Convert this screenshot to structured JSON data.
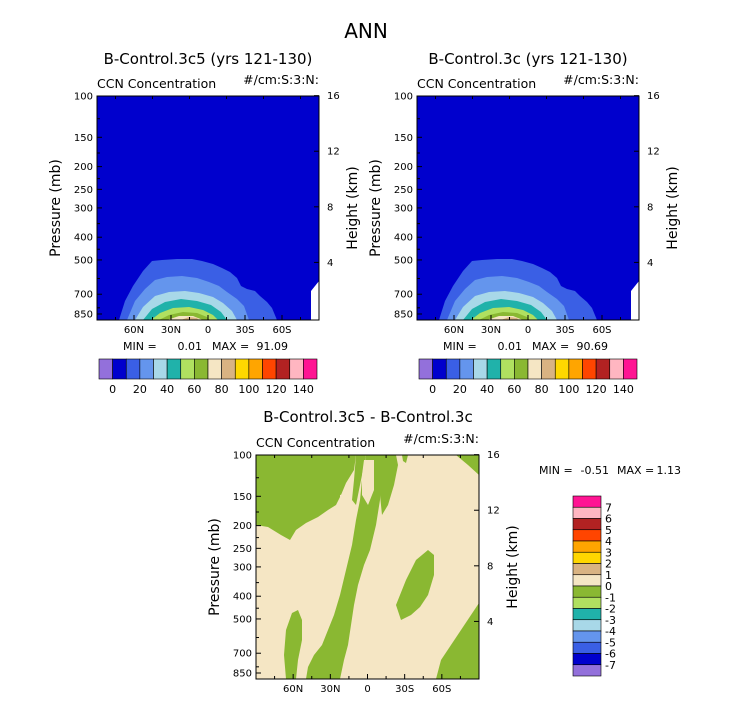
{
  "chart_data": {
    "title": "ANN",
    "panels": [
      {
        "id": "p1",
        "type": "contour",
        "title": "B-Control.3c5 (yrs 121-130)",
        "field": "CCN Concentration",
        "units": "#/cm:S:3:N:",
        "ylabel": "Pressure (mb)",
        "ylabel_right": "Height (km)",
        "pressure_ticks": [
          "100",
          "150",
          "200",
          "250",
          "300",
          "400",
          "500",
          "700",
          "850"
        ],
        "height_ticks": [
          "16",
          "12",
          "8",
          "4"
        ],
        "lat_ticks": [
          "60N",
          "30N",
          "0",
          "30S",
          "60S"
        ],
        "min_label": "MIN =",
        "min_value": "0.01",
        "max_label": "MAX =",
        "max_value": "91.09",
        "colorbar": {
          "labels": [
            "0",
            "20",
            "40",
            "60",
            "80",
            "100",
            "120",
            "140"
          ],
          "colors": [
            "#9370db",
            "#0000cd",
            "#3a5fe5",
            "#6495ed",
            "#a8d8e8",
            "#20b2aa",
            "#b0e060",
            "#8ab832",
            "#f5e6c4",
            "#d9b382",
            "#ffd700",
            "#ffa500",
            "#ff4500",
            "#b22222",
            "#ffb6c1",
            "#ff1493"
          ]
        }
      },
      {
        "id": "p2",
        "type": "contour",
        "title": "B-Control.3c (yrs 121-130)",
        "field": "CCN Concentration",
        "units": "#/cm:S:3:N:",
        "ylabel": "Pressure (mb)",
        "ylabel_right": "Height (km)",
        "pressure_ticks": [
          "100",
          "150",
          "200",
          "250",
          "300",
          "400",
          "500",
          "700",
          "850"
        ],
        "height_ticks": [
          "16",
          "12",
          "8",
          "4"
        ],
        "lat_ticks": [
          "60N",
          "30N",
          "0",
          "30S",
          "60S"
        ],
        "min_label": "MIN =",
        "min_value": "0.01",
        "max_label": "MAX =",
        "max_value": "90.69",
        "colorbar": {
          "labels": [
            "0",
            "20",
            "40",
            "60",
            "80",
            "100",
            "120",
            "140"
          ],
          "colors": [
            "#9370db",
            "#0000cd",
            "#3a5fe5",
            "#6495ed",
            "#a8d8e8",
            "#20b2aa",
            "#b0e060",
            "#8ab832",
            "#f5e6c4",
            "#d9b382",
            "#ffd700",
            "#ffa500",
            "#ff4500",
            "#b22222",
            "#ffb6c1",
            "#ff1493"
          ]
        }
      },
      {
        "id": "p3",
        "type": "contour",
        "title": "B-Control.3c5 - B-Control.3c",
        "field": "CCN Concentration",
        "units": "#/cm:S:3:N:",
        "ylabel": "Pressure (mb)",
        "ylabel_right": "Height (km)",
        "pressure_ticks": [
          "100",
          "150",
          "200",
          "250",
          "300",
          "400",
          "500",
          "700",
          "850"
        ],
        "height_ticks": [
          "16",
          "12",
          "8",
          "4"
        ],
        "lat_ticks": [
          "60N",
          "30N",
          "0",
          "30S",
          "60S"
        ],
        "min_label": "MIN =",
        "min_value": "-0.51",
        "max_label": "MAX =",
        "max_value": "1.13",
        "colorbar": {
          "labels": [
            "7",
            "6",
            "5",
            "4",
            "3",
            "2",
            "1",
            "0",
            "-1",
            "-2",
            "-3",
            "-4",
            "-5",
            "-6",
            "-7"
          ],
          "colors": [
            "#ff1493",
            "#ffb6c1",
            "#b22222",
            "#ff4500",
            "#ffa500",
            "#ffd700",
            "#d9b382",
            "#f5e6c4",
            "#8ab832",
            "#b0e060",
            "#20b2aa",
            "#a8d8e8",
            "#6495ed",
            "#3a5fe5",
            "#0000cd",
            "#9370db"
          ]
        }
      }
    ]
  }
}
